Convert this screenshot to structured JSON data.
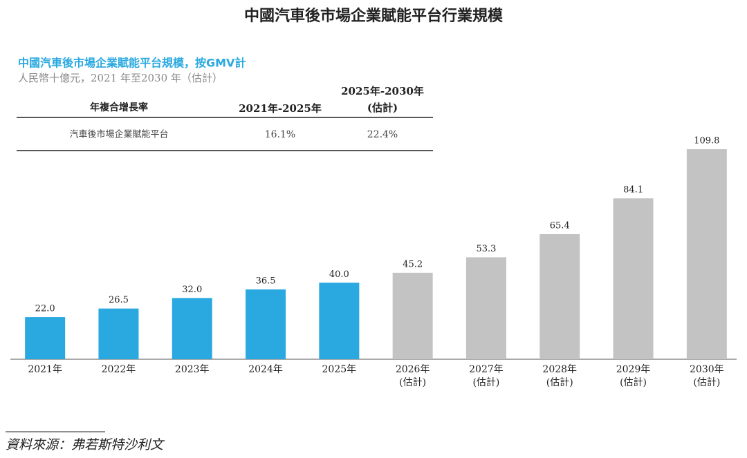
{
  "chart_data": {
    "type": "bar",
    "title": "中國汽車後市場企業賦能平台行業規模",
    "subtitle": "中國汽車後市場企業賦能平台規模，按GMV計",
    "unit_note": "人民幣十億元，2021 年至2030 年（估計）",
    "categories": [
      "2021年",
      "2022年",
      "2023年",
      "2024年",
      "2025年",
      "2026年",
      "2027年",
      "2028年",
      "2029年",
      "2030年"
    ],
    "category_notes": [
      null,
      null,
      null,
      null,
      null,
      "(估計)",
      "(估計)",
      "(估計)",
      "(估計)",
      "(估計)"
    ],
    "values": [
      22.0,
      26.5,
      32.0,
      36.5,
      40.0,
      45.2,
      53.3,
      65.4,
      84.1,
      109.8
    ],
    "value_labels": [
      "22.0",
      "26.5",
      "32.0",
      "36.5",
      "40.0",
      "45.2",
      "53.3",
      "65.4",
      "84.1",
      "109.8"
    ],
    "colors": [
      "#2aa9e0",
      "#2aa9e0",
      "#2aa9e0",
      "#2aa9e0",
      "#2aa9e0",
      "#c3c3c4",
      "#c3c3c4",
      "#c3c3c4",
      "#c3c3c4",
      "#c3c3c4"
    ],
    "source": "資料來源：弗若斯特沙利文"
  },
  "table": {
    "headers": [
      "年複合增長率",
      "2021年-2025年",
      [
        "2025年-2030年",
        "(估計)"
      ]
    ],
    "rows": [
      [
        "汽車後市場企業賦能平台",
        "16.1%",
        "22.4%"
      ]
    ]
  }
}
